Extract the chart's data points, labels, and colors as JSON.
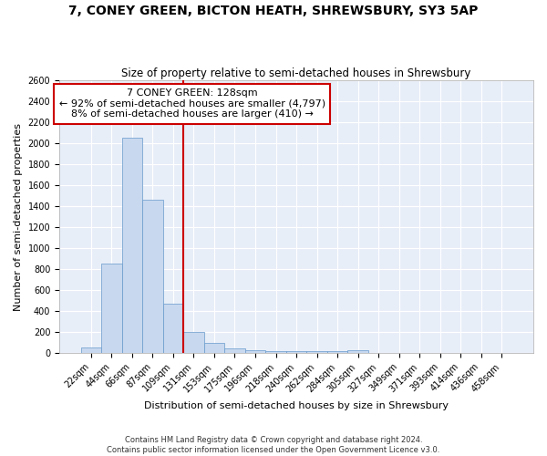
{
  "title": "7, CONEY GREEN, BICTON HEATH, SHREWSBURY, SY3 5AP",
  "subtitle": "Size of property relative to semi-detached houses in Shrewsbury",
  "xlabel": "Distribution of semi-detached houses by size in Shrewsbury",
  "ylabel": "Number of semi-detached properties",
  "bar_labels": [
    "22sqm",
    "44sqm",
    "66sqm",
    "87sqm",
    "109sqm",
    "131sqm",
    "153sqm",
    "175sqm",
    "196sqm",
    "218sqm",
    "240sqm",
    "262sqm",
    "284sqm",
    "305sqm",
    "327sqm",
    "349sqm",
    "371sqm",
    "393sqm",
    "414sqm",
    "436sqm",
    "458sqm"
  ],
  "bar_values": [
    50,
    850,
    2050,
    1460,
    470,
    200,
    95,
    45,
    25,
    20,
    20,
    20,
    20,
    25,
    0,
    0,
    0,
    0,
    0,
    0,
    0
  ],
  "annotation_text_line1": "7 CONEY GREEN: 128sqm",
  "annotation_text_line2": "← 92% of semi-detached houses are smaller (4,797)",
  "annotation_text_line3": "8% of semi-detached houses are larger (410) →",
  "bar_color": "#c8d8ee",
  "bar_edge_color": "#6699cc",
  "line_color": "#cc0000",
  "annotation_box_edge": "#cc0000",
  "background_color": "#e8eef8",
  "grid_color": "#ffffff",
  "ylim": [
    0,
    2600
  ],
  "yticks": [
    0,
    200,
    400,
    600,
    800,
    1000,
    1200,
    1400,
    1600,
    1800,
    2000,
    2200,
    2400,
    2600
  ],
  "prop_line_index": 5,
  "footer_line1": "Contains HM Land Registry data © Crown copyright and database right 2024.",
  "footer_line2": "Contains public sector information licensed under the Open Government Licence v3.0."
}
